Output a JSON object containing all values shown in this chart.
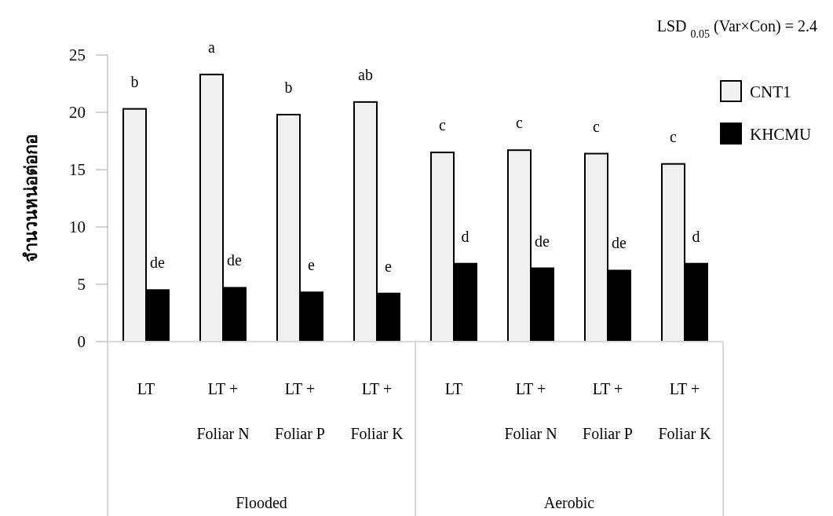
{
  "chart_data": {
    "type": "bar",
    "ylabel": "จำนวนหน่อต่อกอ",
    "categories": [
      "LT",
      "LT +\nFoliar N",
      "LT +\nFoliar P",
      "LT +\nFoliar K",
      "LT",
      "LT +\nFoliar N",
      "LT +\nFoliar P",
      "LT +\nFoliar K"
    ],
    "series": [
      {
        "name": "CNT1",
        "color": "#f0f0f0",
        "values": [
          20.3,
          23.3,
          19.8,
          20.9,
          16.5,
          16.7,
          16.4,
          15.5
        ],
        "value_labels": [
          "b",
          "a",
          "b",
          "ab",
          "c",
          "c",
          "c",
          "c"
        ]
      },
      {
        "name": "KHCMU",
        "color": "#000000",
        "values": [
          4.5,
          4.7,
          4.3,
          4.2,
          6.8,
          6.4,
          6.2,
          6.8
        ],
        "value_labels": [
          "de",
          "de",
          "e",
          "e",
          "d",
          "de",
          "de",
          "d"
        ]
      }
    ],
    "ylim": [
      0,
      25
    ],
    "yticks": [
      0,
      5,
      10,
      15,
      20,
      25
    ],
    "grid": false,
    "legend": "right",
    "annotations": [
      "LSD $_{0.05}$ (Var×Con) = 2.4",
      "Flooded",
      "Aerobic"
    ]
  }
}
